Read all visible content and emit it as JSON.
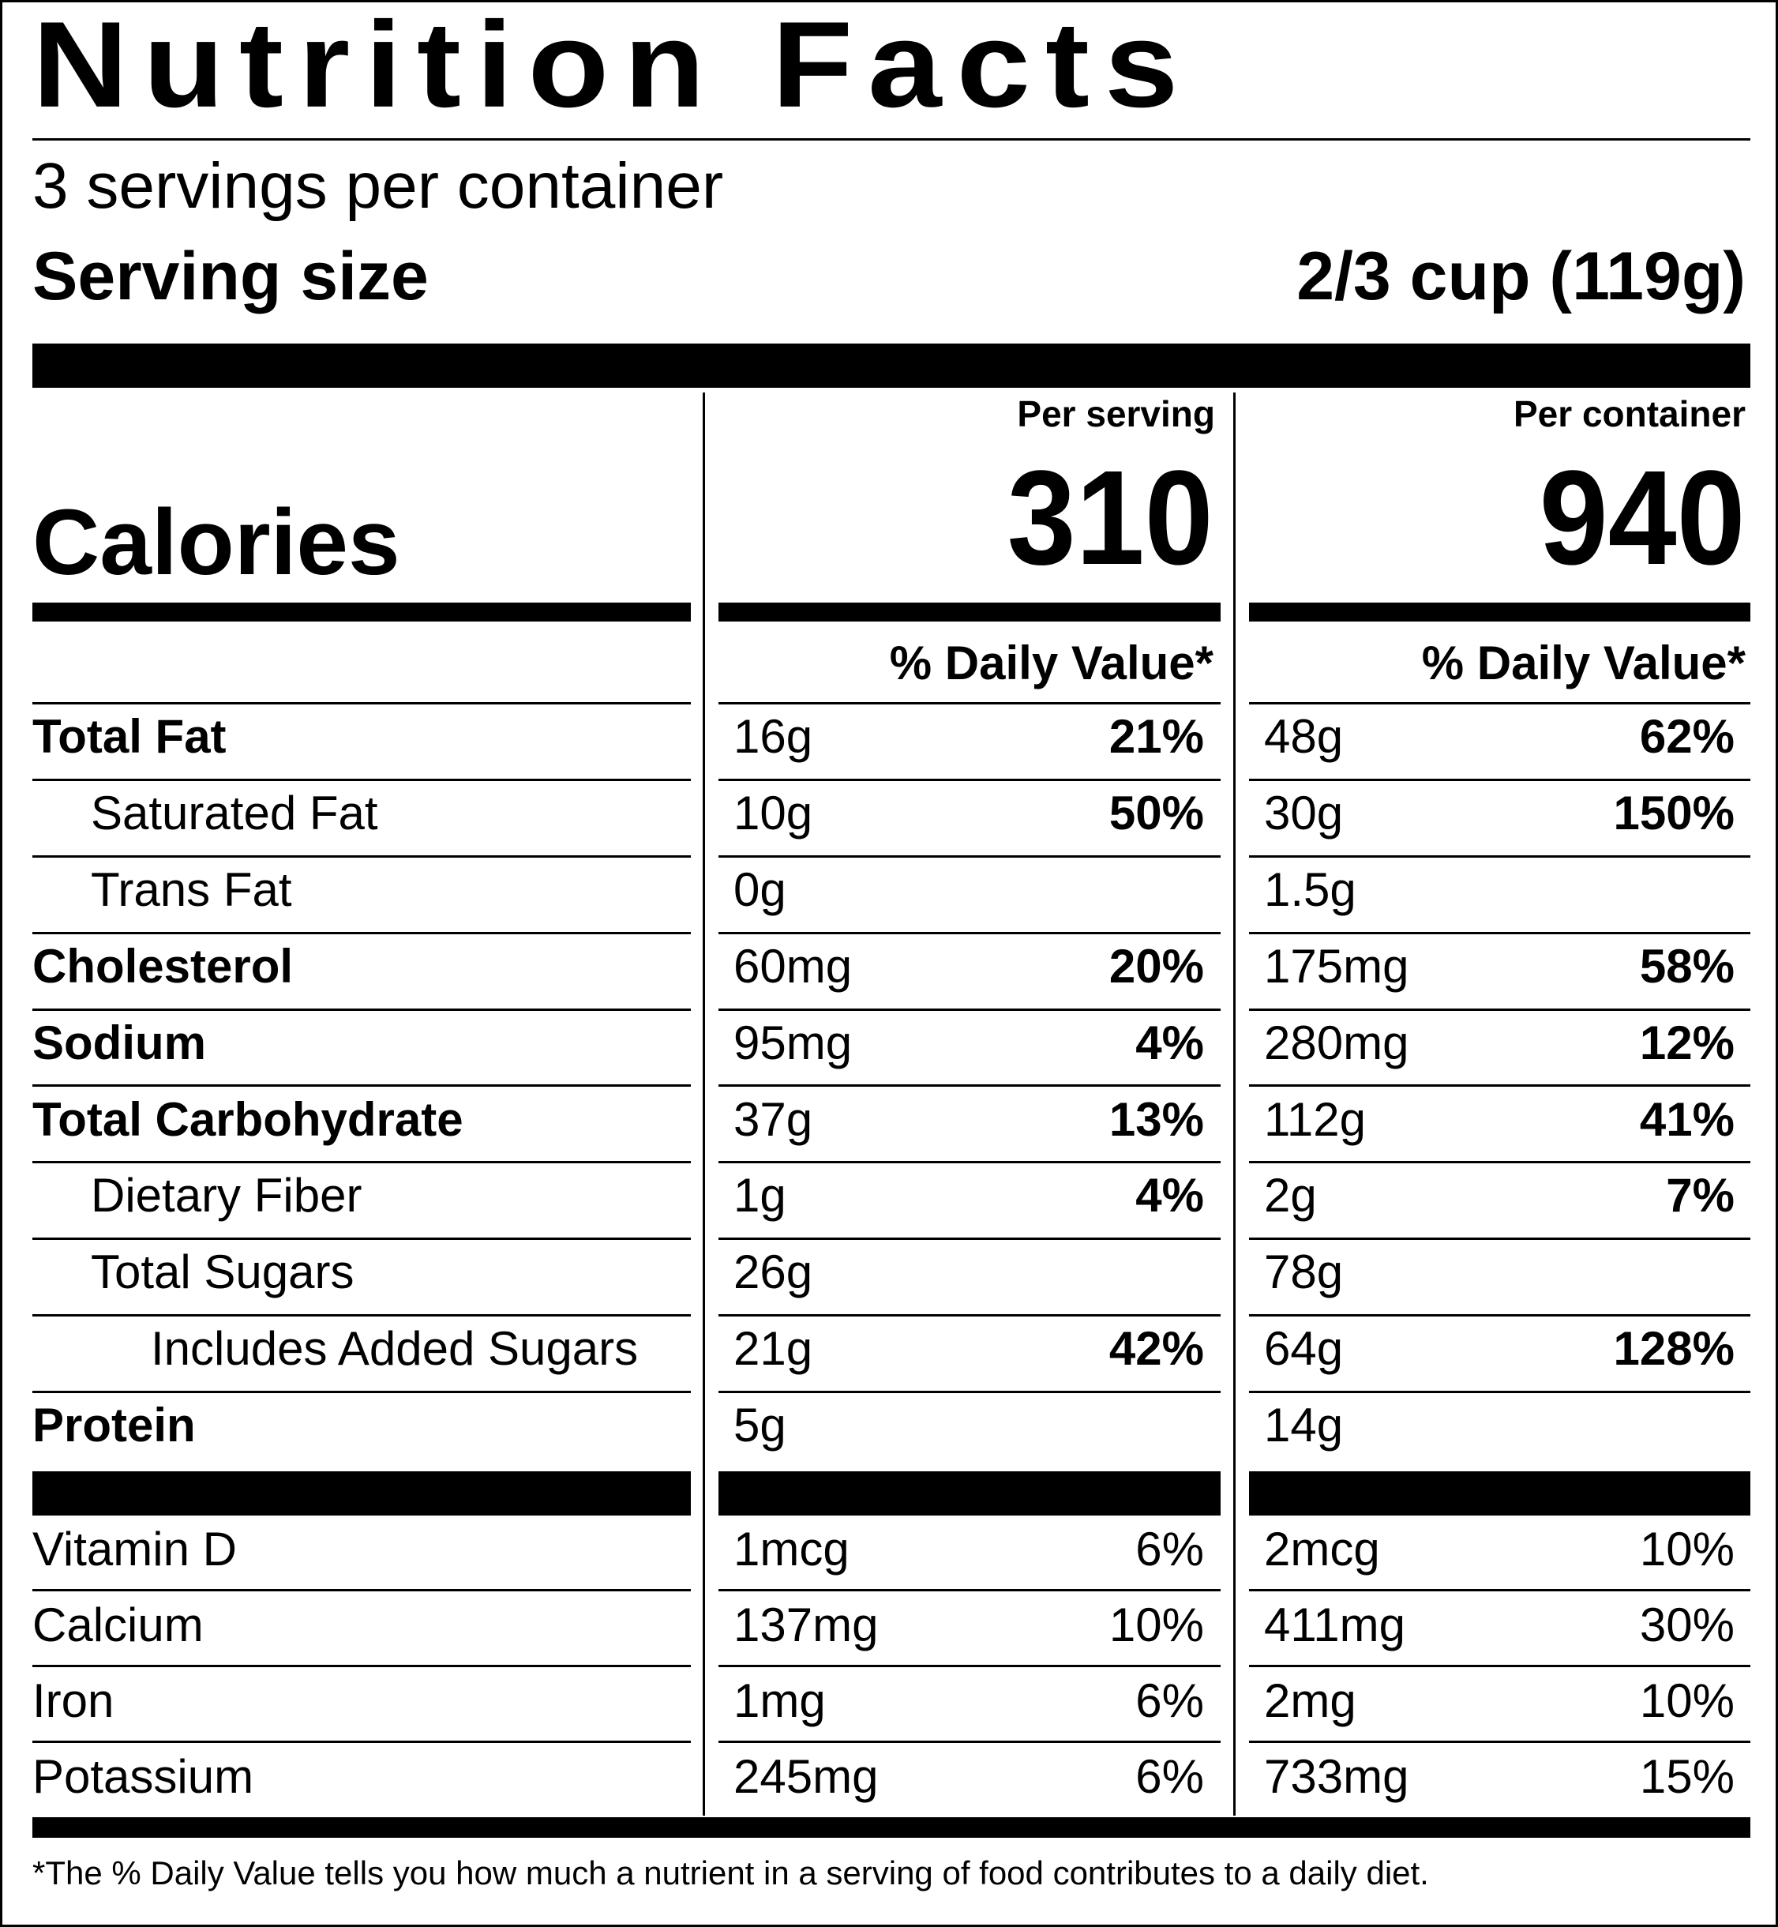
{
  "header": {
    "title": "Nutrition Facts",
    "servings_per_container": "3 servings per container",
    "serving_size_label": "Serving size",
    "serving_size_value": "2/3 cup (119g)"
  },
  "calories": {
    "label": "Calories",
    "per_serving_label": "Per serving",
    "per_container_label": "Per container",
    "per_serving_value": "310",
    "per_container_value": "940",
    "dv_header_serving": "% Daily Value*",
    "dv_header_container": "% Daily Value*"
  },
  "nutrients": [
    {
      "name": "Total Fat",
      "serving_amount": "16g",
      "serving_dv": "21%",
      "container_amount": "48g",
      "container_dv": "62%"
    },
    {
      "name": "Saturated Fat",
      "serving_amount": "10g",
      "serving_dv": "50%",
      "container_amount": "30g",
      "container_dv": "150%"
    },
    {
      "name": "Trans Fat",
      "serving_amount": "0g",
      "serving_dv": "",
      "container_amount": "1.5g",
      "container_dv": ""
    },
    {
      "name": "Cholesterol",
      "serving_amount": "60mg",
      "serving_dv": "20%",
      "container_amount": "175mg",
      "container_dv": "58%"
    },
    {
      "name": "Sodium",
      "serving_amount": "95mg",
      "serving_dv": "4%",
      "container_amount": "280mg",
      "container_dv": "12%"
    },
    {
      "name": "Total Carbohydrate",
      "serving_amount": "37g",
      "serving_dv": "13%",
      "container_amount": "112g",
      "container_dv": "41%"
    },
    {
      "name": "Dietary Fiber",
      "serving_amount": "1g",
      "serving_dv": "4%",
      "container_amount": "2g",
      "container_dv": "7%"
    },
    {
      "name": "Total Sugars",
      "serving_amount": "26g",
      "serving_dv": "",
      "container_amount": "78g",
      "container_dv": ""
    },
    {
      "name": "Includes Added Sugars",
      "serving_amount": "21g",
      "serving_dv": "42%",
      "container_amount": "64g",
      "container_dv": "128%"
    },
    {
      "name": "Protein",
      "serving_amount": "5g",
      "serving_dv": "",
      "container_amount": "14g",
      "container_dv": ""
    }
  ],
  "micronutrients": [
    {
      "name": "Vitamin D",
      "serving_amount": "1mcg",
      "serving_dv": "6%",
      "container_amount": "2mcg",
      "container_dv": "10%"
    },
    {
      "name": "Calcium",
      "serving_amount": "137mg",
      "serving_dv": "10%",
      "container_amount": "411mg",
      "container_dv": "30%"
    },
    {
      "name": "Iron",
      "serving_amount": "1mg",
      "serving_dv": "6%",
      "container_amount": "2mg",
      "container_dv": "10%"
    },
    {
      "name": "Potassium",
      "serving_amount": "245mg",
      "serving_dv": "6%",
      "container_amount": "733mg",
      "container_dv": "15%"
    }
  ],
  "footnote": "*The % Daily Value tells you how much a nutrient in a serving of food contributes to a daily diet."
}
